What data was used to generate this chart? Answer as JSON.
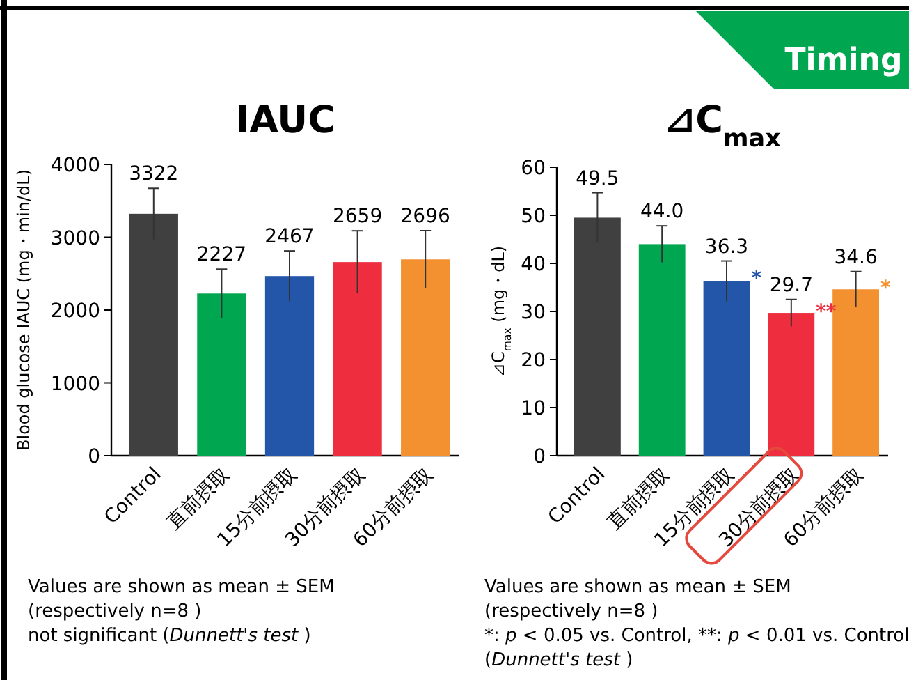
{
  "chart_data": [
    {
      "type": "bar",
      "title": "IAUC",
      "ylabel": "Blood glucose IAUC (mg・min/dL)",
      "categories": [
        "Control",
        "直前摂取",
        "15分前摂取",
        "30分前摂取",
        "60分前摂取"
      ],
      "values": [
        3322,
        2227,
        2467,
        2659,
        2696
      ],
      "errors": [
        350,
        335,
        345,
        430,
        395
      ],
      "colors": [
        "#3f403f",
        "#00a650",
        "#2356a8",
        "#ee2e3e",
        "#f39030"
      ],
      "data_labels": true,
      "ylim": [
        0,
        4000
      ],
      "yticks": [
        0,
        1000,
        2000,
        3000,
        4000
      ],
      "grid": false,
      "annotations": [
        "Values are shown as mean ± SEM",
        "(respectively n=8 )",
        "not significant (*Dunnett's test* )"
      ]
    },
    {
      "type": "bar",
      "title": "⊿C$_{max}$",
      "ylabel": "⊿C$_{max}$ (mg・dL)",
      "categories": [
        "Control",
        "直前摂取",
        "15分前摂取",
        "30分前摂取",
        "60分前摂取"
      ],
      "values": [
        49.5,
        44.0,
        36.3,
        29.7,
        34.6
      ],
      "value_labels": [
        "49.5",
        "44.0",
        "36.3",
        "29.7",
        "34.6"
      ],
      "errors": [
        5.2,
        3.8,
        4.2,
        2.8,
        3.7
      ],
      "colors": [
        "#3f403f",
        "#00a650",
        "#2356a8",
        "#ee2e3e",
        "#f39030"
      ],
      "ylim": [
        0,
        60
      ],
      "yticks": [
        0,
        10,
        20,
        30,
        40,
        50,
        60
      ],
      "grid": false,
      "annotations": [
        {
          "text": "*",
          "x": "15分前摂取",
          "y": 38
        },
        {
          "text": "**",
          "x": "30分前摂取",
          "y": 31
        },
        {
          "text": "*",
          "x": "60分前摂取",
          "y": 36
        },
        "Values are shown as mean ± SEM",
        "(respectively n=8 )",
        "*: *p* < 0.05 vs. Control, **: *p* < 0.01 vs. Control",
        "(*Dunnett's test* )"
      ]
    },
    {
      "type": "other",
      "title": "Timing"
    }
  ]
}
